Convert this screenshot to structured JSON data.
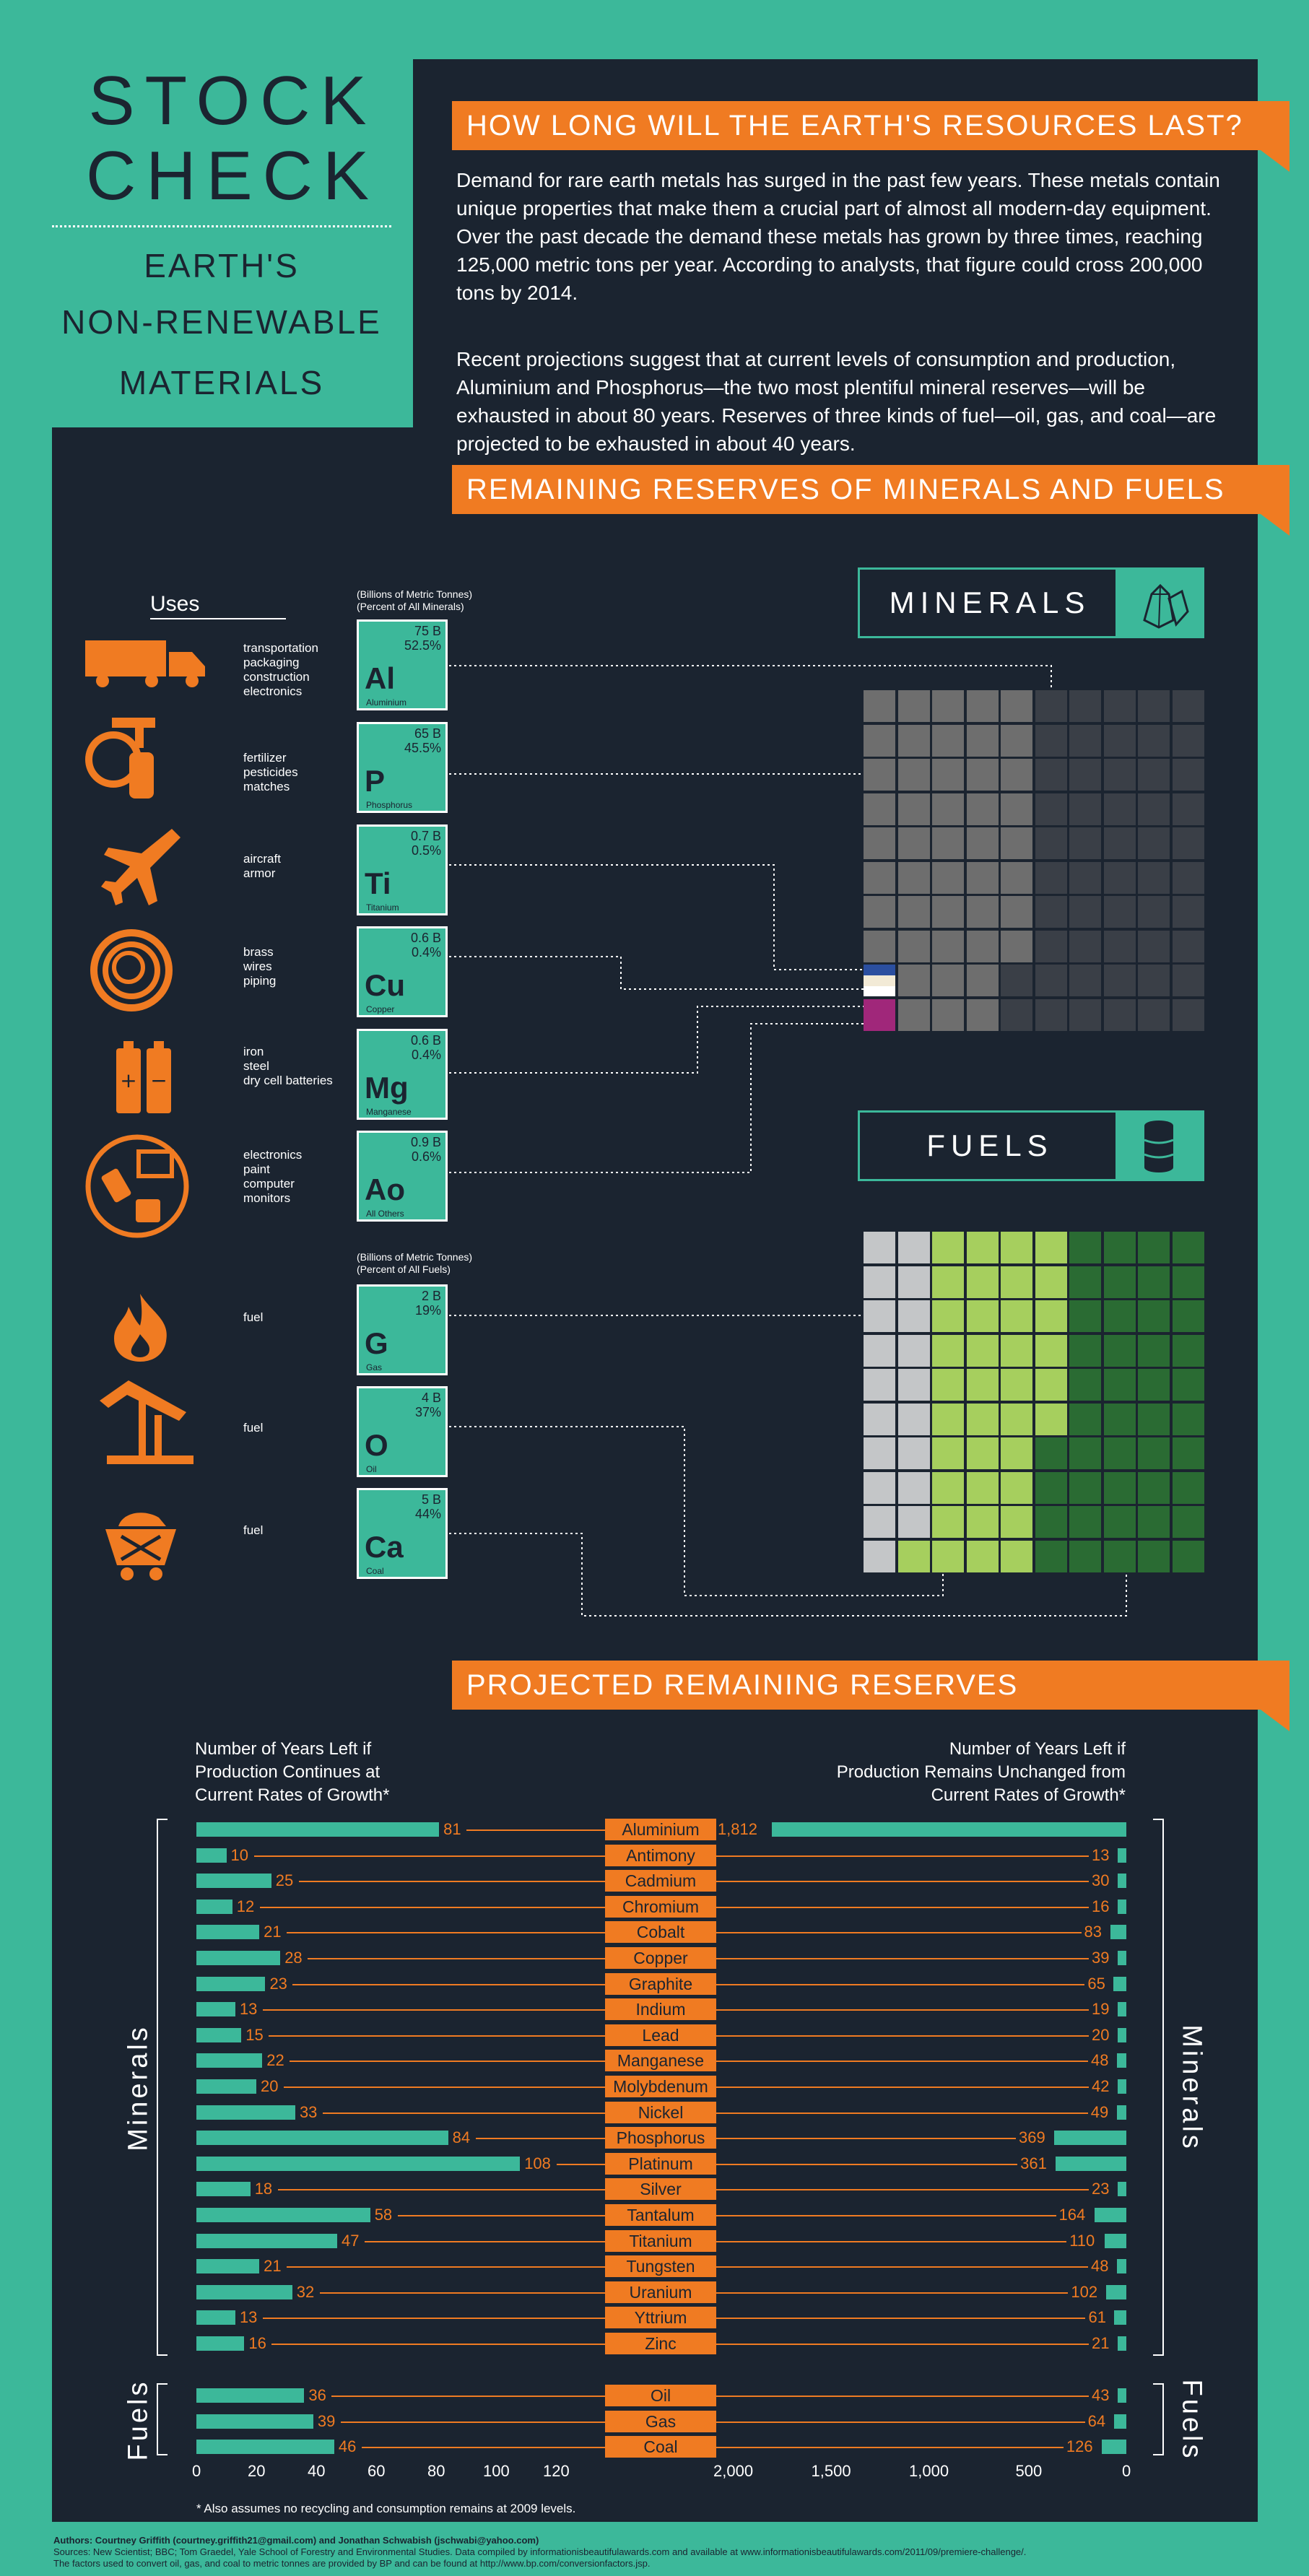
{
  "title": {
    "line1": "STOCK",
    "line2": "CHECK",
    "sub1": "EARTH'S",
    "sub2": "NON-RENEWABLE",
    "sub3": "MATERIALS"
  },
  "section1": {
    "heading": "HOW LONG WILL THE EARTH'S RESOURCES LAST?",
    "para1": "Demand for rare earth metals has surged in the past few years. These metals contain unique properties that make them a crucial part of almost all modern-day equipment. Over the past decade the demand these metals has grown by three times, reaching 125,000 metric tons per year. According to analysts, that figure could cross 200,000 tons by 2014.",
    "para2": "Recent projections suggest that at current levels of consumption and production, Aluminium and Phosphorus—the two most plentiful mineral reserves—will be exhausted in about 80 years. Reserves of three kinds of fuel—oil, gas, and coal—are projected to be exhausted in about 40 years."
  },
  "section2": {
    "heading": "REMAINING RESERVES OF MINERALS AND FUELS",
    "uses_label": "Uses",
    "minerals_units": "(Billions of Metric Tonnes)",
    "minerals_pct": "(Percent of All Minerals)",
    "fuels_units": "(Billions of Metric Tonnes)",
    "fuels_pct": "(Percent of All Fuels)",
    "minerals_header": "MINERALS",
    "fuels_header": "FUELS",
    "minerals": [
      {
        "uses": [
          "transportation",
          "packaging",
          "construction",
          "electronics"
        ],
        "amount": "75 B",
        "pct": "52.5%",
        "symbol": "Al",
        "name": "Aluminium",
        "icon": "truck-icon"
      },
      {
        "uses": [
          "fertilizer",
          "pesticides",
          "matches"
        ],
        "amount": "65 B",
        "pct": "45.5%",
        "symbol": "P",
        "name": "Phosphorus",
        "icon": "sprayer-icon"
      },
      {
        "uses": [
          "aircraft",
          "armor"
        ],
        "amount": "0.7 B",
        "pct": "0.5%",
        "symbol": "Ti",
        "name": "Titanium",
        "icon": "airplane-icon"
      },
      {
        "uses": [
          "brass",
          "wires",
          "piping"
        ],
        "amount": "0.6 B",
        "pct": "0.4%",
        "symbol": "Cu",
        "name": "Copper",
        "icon": "wire-coil-icon"
      },
      {
        "uses": [
          "iron",
          "steel",
          "dry cell batteries"
        ],
        "amount": "0.6 B",
        "pct": "0.4%",
        "symbol": "Mg",
        "name": "Manganese",
        "icon": "battery-icon"
      },
      {
        "uses": [
          "electronics",
          "paint",
          "computer",
          "monitors"
        ],
        "amount": "0.9 B",
        "pct": "0.6%",
        "symbol": "Ao",
        "name": "All Others",
        "icon": "devices-icon"
      }
    ],
    "fuels": [
      {
        "uses": [
          "fuel"
        ],
        "amount": "2 B",
        "pct": "19%",
        "symbol": "G",
        "name": "Gas",
        "icon": "flame-icon"
      },
      {
        "uses": [
          "fuel"
        ],
        "amount": "4 B",
        "pct": "37%",
        "symbol": "O",
        "name": "Oil",
        "icon": "oil-pump-icon"
      },
      {
        "uses": [
          "fuel"
        ],
        "amount": "5 B",
        "pct": "44%",
        "symbol": "Ca",
        "name": "Coal",
        "icon": "coal-cart-icon"
      }
    ]
  },
  "section3": {
    "heading": "PROJECTED REMAINING RESERVES",
    "left_header": [
      "Number of Years Left if",
      "Production Continues at",
      "Current Rates of Growth*"
    ],
    "right_header": [
      "Number of Years Left if",
      "Production Remains Unchanged from",
      "Current Rates of Growth*"
    ],
    "minerals_label": "Minerals",
    "fuels_label": "Fuels",
    "footnote": "* Also assumes no recycling  and consumption remains at 2009 levels.",
    "credits1": "Authors: Courtney Griffith (courtney.griffith21@gmail.com) and Jonathan Schwabish (jschwabi@yahoo.com)",
    "credits2": "Sources: New Scientist; BBC; Tom Graedel, Yale School of Forestry and Environmental Studies. Data compiled by informationisbeautifulawards.com and available at www.informationisbeautifulawards.com/2011/09/premiere-challenge/.",
    "credits3": "The factors used to convert oil, gas, and coal to metric tonnes are provided by BP and can be found at http://www.bp.com/conversionfactors.jsp."
  },
  "chart_data": [
    {
      "type": "waffle",
      "title": "MINERALS",
      "categories": [
        "Aluminium",
        "Phosphorus",
        "Titanium",
        "Copper",
        "Manganese",
        "All Others"
      ],
      "values_billion_tonnes": [
        75,
        65,
        0.7,
        0.6,
        0.6,
        0.9
      ],
      "percent": [
        52.5,
        45.5,
        0.5,
        0.4,
        0.4,
        0.6
      ],
      "colors": [
        "#3a3f47",
        "#6e6e6e",
        "#2b4fa0",
        "#f2ead6",
        "#ffffff",
        "#a0277a"
      ]
    },
    {
      "type": "waffle",
      "title": "FUELS",
      "categories": [
        "Gas",
        "Oil",
        "Coal"
      ],
      "values_billion_tonnes": [
        2,
        4,
        5
      ],
      "percent": [
        19,
        37,
        44
      ],
      "colors": [
        "#c4c6c8",
        "#a6cf5e",
        "#2a6b33"
      ]
    },
    {
      "type": "bar",
      "title": "PROJECTED REMAINING RESERVES",
      "categories": [
        "Aluminium",
        "Antimony",
        "Cadmium",
        "Chromium",
        "Cobalt",
        "Copper",
        "Graphite",
        "Indium",
        "Lead",
        "Manganese",
        "Molybdenum",
        "Nickel",
        "Phosphorus",
        "Platinum",
        "Silver",
        "Tantalum",
        "Titanium",
        "Tungsten",
        "Uranium",
        "Yttrium",
        "Zinc",
        "Oil",
        "Gas",
        "Coal"
      ],
      "groups": {
        "Minerals": 21,
        "Fuels": 3
      },
      "series": [
        {
          "values": [
            81,
            10,
            25,
            12,
            21,
            28,
            23,
            13,
            15,
            22,
            20,
            33,
            84,
            108,
            18,
            58,
            47,
            21,
            32,
            13,
            16,
            36,
            39,
            46
          ],
          "xlim": [
            0,
            120
          ],
          "ticks": [
            0,
            20,
            40,
            60,
            80,
            100,
            120
          ]
        },
        {
          "values": [
            1812,
            13,
            30,
            16,
            83,
            39,
            65,
            19,
            20,
            48,
            42,
            49,
            369,
            361,
            23,
            164,
            110,
            48,
            102,
            61,
            21,
            43,
            64,
            126
          ],
          "xlim": [
            2000,
            0
          ],
          "ticks": [
            "2,000",
            "1,500",
            "1,000",
            "500",
            "0"
          ]
        }
      ],
      "colors": {
        "bar": "#3cb89a",
        "label": "#f07b22",
        "background": "#1b2430"
      }
    }
  ]
}
